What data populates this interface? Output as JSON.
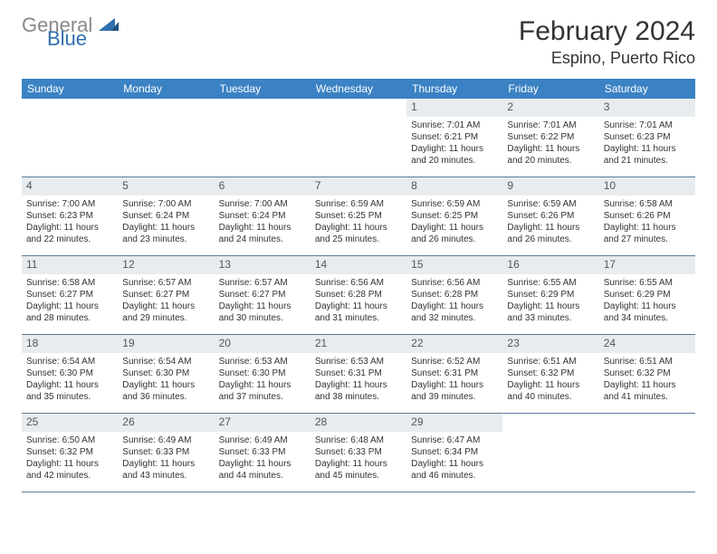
{
  "logo": {
    "general": "General",
    "blue": "Blue"
  },
  "title": {
    "month": "February 2024",
    "location": "Espino, Puerto Rico"
  },
  "weekdays": [
    "Sunday",
    "Monday",
    "Tuesday",
    "Wednesday",
    "Thursday",
    "Friday",
    "Saturday"
  ],
  "colors": {
    "header_bar": "#3b82c4",
    "daynum_bg": "#e8ecef",
    "week_border": "#5a7a9a",
    "logo_gray": "#888888",
    "logo_blue": "#2f6fb0"
  },
  "weeks": [
    [
      {
        "empty": true
      },
      {
        "empty": true
      },
      {
        "empty": true
      },
      {
        "empty": true
      },
      {
        "num": "1",
        "sunrise": "Sunrise: 7:01 AM",
        "sunset": "Sunset: 6:21 PM",
        "daylight1": "Daylight: 11 hours",
        "daylight2": "and 20 minutes."
      },
      {
        "num": "2",
        "sunrise": "Sunrise: 7:01 AM",
        "sunset": "Sunset: 6:22 PM",
        "daylight1": "Daylight: 11 hours",
        "daylight2": "and 20 minutes."
      },
      {
        "num": "3",
        "sunrise": "Sunrise: 7:01 AM",
        "sunset": "Sunset: 6:23 PM",
        "daylight1": "Daylight: 11 hours",
        "daylight2": "and 21 minutes."
      }
    ],
    [
      {
        "num": "4",
        "sunrise": "Sunrise: 7:00 AM",
        "sunset": "Sunset: 6:23 PM",
        "daylight1": "Daylight: 11 hours",
        "daylight2": "and 22 minutes."
      },
      {
        "num": "5",
        "sunrise": "Sunrise: 7:00 AM",
        "sunset": "Sunset: 6:24 PM",
        "daylight1": "Daylight: 11 hours",
        "daylight2": "and 23 minutes."
      },
      {
        "num": "6",
        "sunrise": "Sunrise: 7:00 AM",
        "sunset": "Sunset: 6:24 PM",
        "daylight1": "Daylight: 11 hours",
        "daylight2": "and 24 minutes."
      },
      {
        "num": "7",
        "sunrise": "Sunrise: 6:59 AM",
        "sunset": "Sunset: 6:25 PM",
        "daylight1": "Daylight: 11 hours",
        "daylight2": "and 25 minutes."
      },
      {
        "num": "8",
        "sunrise": "Sunrise: 6:59 AM",
        "sunset": "Sunset: 6:25 PM",
        "daylight1": "Daylight: 11 hours",
        "daylight2": "and 26 minutes."
      },
      {
        "num": "9",
        "sunrise": "Sunrise: 6:59 AM",
        "sunset": "Sunset: 6:26 PM",
        "daylight1": "Daylight: 11 hours",
        "daylight2": "and 26 minutes."
      },
      {
        "num": "10",
        "sunrise": "Sunrise: 6:58 AM",
        "sunset": "Sunset: 6:26 PM",
        "daylight1": "Daylight: 11 hours",
        "daylight2": "and 27 minutes."
      }
    ],
    [
      {
        "num": "11",
        "sunrise": "Sunrise: 6:58 AM",
        "sunset": "Sunset: 6:27 PM",
        "daylight1": "Daylight: 11 hours",
        "daylight2": "and 28 minutes."
      },
      {
        "num": "12",
        "sunrise": "Sunrise: 6:57 AM",
        "sunset": "Sunset: 6:27 PM",
        "daylight1": "Daylight: 11 hours",
        "daylight2": "and 29 minutes."
      },
      {
        "num": "13",
        "sunrise": "Sunrise: 6:57 AM",
        "sunset": "Sunset: 6:27 PM",
        "daylight1": "Daylight: 11 hours",
        "daylight2": "and 30 minutes."
      },
      {
        "num": "14",
        "sunrise": "Sunrise: 6:56 AM",
        "sunset": "Sunset: 6:28 PM",
        "daylight1": "Daylight: 11 hours",
        "daylight2": "and 31 minutes."
      },
      {
        "num": "15",
        "sunrise": "Sunrise: 6:56 AM",
        "sunset": "Sunset: 6:28 PM",
        "daylight1": "Daylight: 11 hours",
        "daylight2": "and 32 minutes."
      },
      {
        "num": "16",
        "sunrise": "Sunrise: 6:55 AM",
        "sunset": "Sunset: 6:29 PM",
        "daylight1": "Daylight: 11 hours",
        "daylight2": "and 33 minutes."
      },
      {
        "num": "17",
        "sunrise": "Sunrise: 6:55 AM",
        "sunset": "Sunset: 6:29 PM",
        "daylight1": "Daylight: 11 hours",
        "daylight2": "and 34 minutes."
      }
    ],
    [
      {
        "num": "18",
        "sunrise": "Sunrise: 6:54 AM",
        "sunset": "Sunset: 6:30 PM",
        "daylight1": "Daylight: 11 hours",
        "daylight2": "and 35 minutes."
      },
      {
        "num": "19",
        "sunrise": "Sunrise: 6:54 AM",
        "sunset": "Sunset: 6:30 PM",
        "daylight1": "Daylight: 11 hours",
        "daylight2": "and 36 minutes."
      },
      {
        "num": "20",
        "sunrise": "Sunrise: 6:53 AM",
        "sunset": "Sunset: 6:30 PM",
        "daylight1": "Daylight: 11 hours",
        "daylight2": "and 37 minutes."
      },
      {
        "num": "21",
        "sunrise": "Sunrise: 6:53 AM",
        "sunset": "Sunset: 6:31 PM",
        "daylight1": "Daylight: 11 hours",
        "daylight2": "and 38 minutes."
      },
      {
        "num": "22",
        "sunrise": "Sunrise: 6:52 AM",
        "sunset": "Sunset: 6:31 PM",
        "daylight1": "Daylight: 11 hours",
        "daylight2": "and 39 minutes."
      },
      {
        "num": "23",
        "sunrise": "Sunrise: 6:51 AM",
        "sunset": "Sunset: 6:32 PM",
        "daylight1": "Daylight: 11 hours",
        "daylight2": "and 40 minutes."
      },
      {
        "num": "24",
        "sunrise": "Sunrise: 6:51 AM",
        "sunset": "Sunset: 6:32 PM",
        "daylight1": "Daylight: 11 hours",
        "daylight2": "and 41 minutes."
      }
    ],
    [
      {
        "num": "25",
        "sunrise": "Sunrise: 6:50 AM",
        "sunset": "Sunset: 6:32 PM",
        "daylight1": "Daylight: 11 hours",
        "daylight2": "and 42 minutes."
      },
      {
        "num": "26",
        "sunrise": "Sunrise: 6:49 AM",
        "sunset": "Sunset: 6:33 PM",
        "daylight1": "Daylight: 11 hours",
        "daylight2": "and 43 minutes."
      },
      {
        "num": "27",
        "sunrise": "Sunrise: 6:49 AM",
        "sunset": "Sunset: 6:33 PM",
        "daylight1": "Daylight: 11 hours",
        "daylight2": "and 44 minutes."
      },
      {
        "num": "28",
        "sunrise": "Sunrise: 6:48 AM",
        "sunset": "Sunset: 6:33 PM",
        "daylight1": "Daylight: 11 hours",
        "daylight2": "and 45 minutes."
      },
      {
        "num": "29",
        "sunrise": "Sunrise: 6:47 AM",
        "sunset": "Sunset: 6:34 PM",
        "daylight1": "Daylight: 11 hours",
        "daylight2": "and 46 minutes."
      },
      {
        "empty": true
      },
      {
        "empty": true
      }
    ]
  ]
}
